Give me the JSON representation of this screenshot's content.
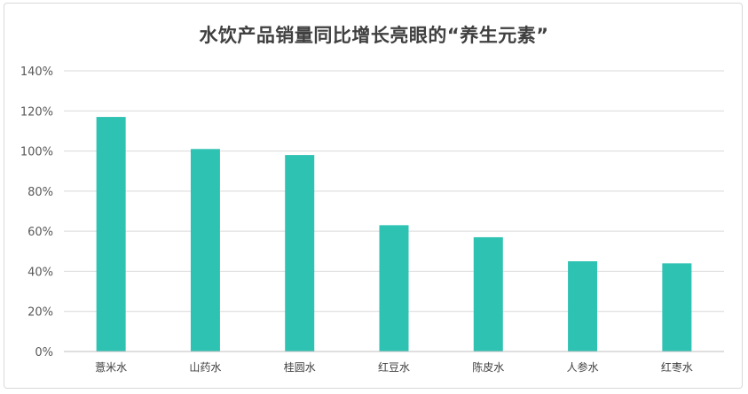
{
  "chart_data": {
    "type": "bar",
    "title": "水饮产品销量同比增长亮眼的“养生元素”",
    "xlabel": "",
    "ylabel": "",
    "categories": [
      "薏米水",
      "山药水",
      "桂圆水",
      "红豆水",
      "陈皮水",
      "人参水",
      "红枣水"
    ],
    "values": [
      117,
      101,
      98,
      63,
      57,
      45,
      44
    ],
    "y_ticks": [
      "0%",
      "20%",
      "40%",
      "60%",
      "80%",
      "100%",
      "120%",
      "140%"
    ],
    "ylim": [
      0,
      140
    ],
    "y_unit": "%",
    "grid": true,
    "legend": "none",
    "bar_color": "#2ec2b3",
    "grid_color": "#d9d9d9",
    "axis_color": "#bfbfbf"
  }
}
